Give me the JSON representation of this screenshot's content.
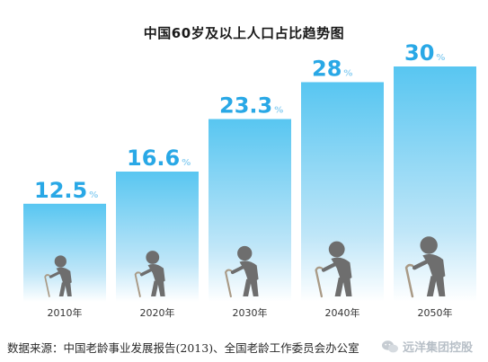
{
  "chart_data": {
    "type": "bar",
    "title": "中国60岁及以上人口占比趋势图",
    "categories": [
      "2010年",
      "2020年",
      "2030年",
      "2040年",
      "2050年"
    ],
    "values": [
      12.5,
      16.6,
      23.3,
      28,
      30
    ],
    "value_labels": [
      "12.5",
      "16.6",
      "23.3",
      "28",
      "30"
    ],
    "value_unit": "%",
    "bar_gradient": [
      "#58c6f1",
      "#ffffff"
    ],
    "value_color": "#29a8e6",
    "figure_color": "#6e6e6e",
    "grid": false,
    "legend": "none"
  },
  "source_note": "数据来源：中国老龄事业发展报告(2013)、全国老龄工作委员会办公室",
  "watermark": "远洋集团控股"
}
